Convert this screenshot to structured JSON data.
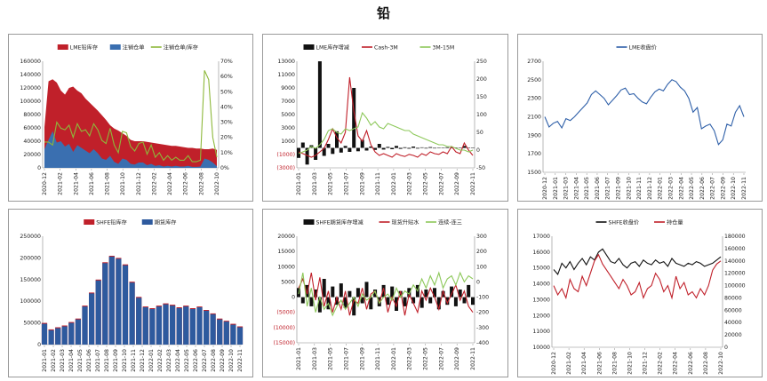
{
  "page": {
    "title": "铅"
  },
  "chart_data": [
    {
      "id": "lme-stock",
      "type": "bar",
      "legend": [
        "LME铅库存",
        "注销仓单",
        "注销仓单/库存"
      ],
      "ylim_left": [
        0,
        160000
      ],
      "yticks_left": [
        "0",
        "20000",
        "40000",
        "60000",
        "80000",
        "100000",
        "120000",
        "140000",
        "160000"
      ],
      "ylim_right": [
        0,
        70
      ],
      "yticks_right": [
        "0%",
        "10%",
        "20%",
        "30%",
        "40%",
        "50%",
        "60%",
        "70%"
      ],
      "xticks": [
        "2020-12",
        "2021-02",
        "2021-04",
        "2021-06",
        "2021-08",
        "2021-10",
        "2021-12",
        "2022-02",
        "2022-04",
        "2022-06",
        "2022-08",
        "2022-10"
      ],
      "series": [
        {
          "name": "LME铅库存",
          "kind": "area",
          "color": "#c0202a",
          "values": [
            61000,
            130000,
            133000,
            128000,
            116000,
            110000,
            120000,
            122000,
            116000,
            112000,
            104000,
            98000,
            92000,
            86000,
            79000,
            72000,
            64000,
            59000,
            56000,
            52000,
            48000,
            42000,
            40000,
            40000,
            40000,
            39000,
            38000,
            37000,
            36000,
            35000,
            34000,
            33000,
            33000,
            32000,
            31000,
            30000,
            30000,
            29000,
            29000,
            28000,
            28000,
            29000,
            27000
          ]
        },
        {
          "name": "注销仓单",
          "kind": "area",
          "color": "#3a6fb0",
          "values": [
            28000,
            42000,
            55000,
            38000,
            40000,
            32000,
            36000,
            24000,
            34000,
            30000,
            26000,
            22000,
            28000,
            22000,
            14000,
            12000,
            18000,
            9000,
            6000,
            14000,
            12000,
            6000,
            5000,
            8000,
            8000,
            4000,
            6000,
            3000,
            4000,
            2000,
            3000,
            2000,
            3000,
            2000,
            2000,
            3000,
            1500,
            1500,
            2000,
            14000,
            12000,
            8000,
            2500
          ]
        },
        {
          "name": "注销仓单/库存",
          "kind": "line",
          "color": "#8db83a",
          "values": [
            17,
            17,
            15,
            30,
            26,
            25,
            28,
            20,
            29,
            24,
            25,
            21,
            29,
            25,
            18,
            16,
            26,
            15,
            10,
            24,
            23,
            14,
            11,
            16,
            17,
            9,
            15,
            7,
            10,
            5,
            8,
            5,
            7,
            5,
            5,
            8,
            4,
            4,
            5,
            64,
            58,
            20,
            7
          ]
        }
      ]
    },
    {
      "id": "lme-stock-change",
      "type": "bar",
      "legend": [
        "LME库存增减",
        "Cash-3M",
        "3M-15M"
      ],
      "ylim_left": [
        -3000,
        13000
      ],
      "yticks_left": [
        "(3000)",
        "(1000)",
        "1000",
        "3000",
        "5000",
        "7000",
        "9000",
        "11000",
        "13000"
      ],
      "ylim_right": [
        -50,
        250
      ],
      "yticks_right": [
        "-50",
        "0",
        "50",
        "100",
        "150",
        "200",
        "250"
      ],
      "xticks": [
        "2021-01",
        "2021-03",
        "2021-05",
        "2021-07",
        "2021-09",
        "2021-11",
        "2022-01",
        "2022-03",
        "2022-05",
        "2022-07",
        "2022-09",
        "2022-11"
      ],
      "series": [
        {
          "name": "LME库存增减",
          "kind": "bar",
          "color": "#111111",
          "values": [
            -1500,
            800,
            -2500,
            400,
            -1800,
            13000,
            -1200,
            600,
            -900,
            2500,
            -700,
            300,
            -600,
            9000,
            -500,
            1200,
            -400,
            200,
            -300,
            600,
            -250,
            150,
            -200,
            300,
            -150,
            100,
            -120,
            200,
            -100,
            80,
            -90,
            120,
            -80,
            60,
            -70,
            100,
            -60,
            50,
            -50,
            300,
            -40,
            30
          ]
        },
        {
          "name": "Cash-3M",
          "kind": "line",
          "color": "#c0202a",
          "values": [
            -5,
            -10,
            -15,
            -20,
            -15,
            -5,
            5,
            30,
            60,
            35,
            20,
            50,
            205,
            110,
            40,
            25,
            55,
            15,
            -5,
            -15,
            -10,
            -15,
            -20,
            -10,
            -15,
            -18,
            -12,
            -15,
            -20,
            -10,
            -15,
            -5,
            -10,
            -12,
            -5,
            -10,
            10,
            -5,
            -10,
            20,
            0,
            -15
          ]
        },
        {
          "name": "3M-15M",
          "kind": "line",
          "color": "#8dc85a",
          "values": [
            -10,
            -5,
            0,
            10,
            5,
            15,
            30,
            55,
            60,
            50,
            45,
            60,
            55,
            60,
            65,
            105,
            90,
            70,
            80,
            65,
            60,
            75,
            70,
            65,
            60,
            55,
            55,
            45,
            40,
            35,
            30,
            25,
            20,
            15,
            15,
            10,
            10,
            5,
            0,
            0,
            -5,
            0
          ]
        }
      ]
    },
    {
      "id": "lme-price",
      "type": "line",
      "legend": [
        "LME收盘价"
      ],
      "ylim": [
        1500,
        2700
      ],
      "yticks": [
        "1500",
        "1700",
        "1900",
        "2100",
        "2300",
        "2500",
        "2700"
      ],
      "xticks": [
        "2020-12",
        "2021-01",
        "2021-03",
        "2021-04",
        "2021-05",
        "2021-06",
        "2021-07",
        "2021-09",
        "2021-10",
        "2021-11",
        "2021-12",
        "2022-01",
        "2022-03",
        "2022-04",
        "2022-05",
        "2022-06",
        "2022-07",
        "2022-09",
        "2022-10",
        "2022-11"
      ],
      "series": [
        {
          "name": "LME收盘价",
          "kind": "line",
          "color": "#2e5fa8",
          "values": [
            2100,
            1990,
            2030,
            2050,
            1980,
            2080,
            2060,
            2100,
            2150,
            2200,
            2250,
            2340,
            2380,
            2340,
            2300,
            2230,
            2280,
            2330,
            2390,
            2410,
            2340,
            2350,
            2300,
            2260,
            2240,
            2310,
            2370,
            2400,
            2380,
            2450,
            2500,
            2480,
            2420,
            2380,
            2300,
            2150,
            2200,
            1970,
            2000,
            2020,
            1950,
            1800,
            1850,
            2020,
            2000,
            2150,
            2220,
            2100
          ]
        }
      ]
    },
    {
      "id": "shfe-stock",
      "type": "bar",
      "legend": [
        "SHFE铅库存",
        "期货库存"
      ],
      "ylim": [
        0,
        250000
      ],
      "yticks": [
        "0",
        "50000",
        "100000",
        "150000",
        "200000",
        "250000"
      ],
      "xticks": [
        "2021-01",
        "2021-02",
        "2021-03",
        "2021-04",
        "2021-05",
        "2021-06",
        "2021-07",
        "2021-08",
        "2021-09",
        "2021-10",
        "2021-11",
        "2021-12",
        "2022-01",
        "2022-02",
        "2022-03",
        "2022-04",
        "2022-05",
        "2022-06",
        "2022-07",
        "2022-08",
        "2022-09",
        "2022-10",
        "2022-11"
      ],
      "series": [
        {
          "name": "SHFE铅库存",
          "kind": "bar",
          "color": "#c0202a",
          "values": [
            50000,
            35000,
            40000,
            44000,
            52000,
            60000,
            90000,
            120000,
            150000,
            190000,
            205000,
            200000,
            185000,
            145000,
            110000,
            88000,
            84000,
            90000,
            95000,
            92000,
            86000,
            90000,
            84000,
            88000,
            80000,
            72000,
            60000,
            55000,
            48000,
            42000
          ]
        },
        {
          "name": "期货库存",
          "kind": "bar",
          "color": "#2e5a9e",
          "values": [
            48000,
            33000,
            38000,
            42000,
            50000,
            58000,
            88000,
            118000,
            148000,
            188000,
            203000,
            198000,
            183000,
            143000,
            108000,
            86000,
            82000,
            88000,
            93000,
            90000,
            84000,
            88000,
            82000,
            86000,
            78000,
            70000,
            58000,
            53000,
            46000,
            40000
          ]
        }
      ]
    },
    {
      "id": "shfe-stock-change",
      "type": "bar",
      "legend": [
        "SHFE期货库存增减",
        "现货升贴水",
        "连续-连三"
      ],
      "ylim_left": [
        -15000,
        20000
      ],
      "yticks_left": [
        "(15000)",
        "(10000)",
        "(5000)",
        "0",
        "5000",
        "10000",
        "15000",
        "20000"
      ],
      "ylim_right": [
        -400,
        300
      ],
      "yticks_right": [
        "-400",
        "-300",
        "-200",
        "-100",
        "0",
        "100",
        "200",
        "300"
      ],
      "xticks": [
        "2021-01",
        "2021-03",
        "2021-05",
        "2021-07",
        "2021-09",
        "2021-11",
        "2022-01",
        "2022-03",
        "2022-05",
        "2022-07",
        "2022-09",
        "2022-11"
      ],
      "series": [
        {
          "name": "SHFE期货库存增减",
          "kind": "bar",
          "color": "#111111",
          "values": [
            3000,
            -2000,
            4000,
            -3000,
            2500,
            -5000,
            6000,
            -4000,
            3500,
            -2500,
            4500,
            -3500,
            2000,
            -6000,
            3000,
            -2000,
            5000,
            -4000,
            2500,
            -3000,
            4000,
            -2500,
            3500,
            -4500,
            2000,
            -3000,
            3000,
            -2000,
            4000,
            -3500,
            2500,
            -2000,
            3000,
            -4000,
            2000,
            -2500,
            3500,
            -3000,
            2500,
            -2000,
            4000,
            -2500
          ]
        },
        {
          "name": "现货升贴水",
          "kind": "line",
          "color": "#c0202a",
          "values": [
            -40,
            20,
            -80,
            60,
            -120,
            30,
            -160,
            -60,
            -200,
            -100,
            -180,
            -60,
            -220,
            -120,
            -140,
            -40,
            -180,
            -80,
            -60,
            -140,
            -40,
            -200,
            -100,
            -160,
            -60,
            -220,
            -80,
            -140,
            -200,
            -60,
            -120,
            -40,
            -100,
            -180,
            -60,
            -140,
            -80,
            -20,
            -120,
            -60,
            -160,
            -200
          ]
        },
        {
          "name": "连续-连三",
          "kind": "line",
          "color": "#8dc85a",
          "values": [
            -80,
            60,
            -160,
            -40,
            -200,
            -100,
            -180,
            -140,
            -220,
            -160,
            -120,
            -180,
            -140,
            -100,
            -160,
            -80,
            -120,
            -100,
            -60,
            -140,
            -100,
            -80,
            -120,
            -40,
            -100,
            -60,
            -80,
            -20,
            -60,
            20,
            -40,
            40,
            -20,
            60,
            -40,
            20,
            40,
            -20,
            60,
            0,
            40,
            20
          ]
        }
      ]
    },
    {
      "id": "shfe-price",
      "type": "line",
      "legend": [
        "SHFE收盘价",
        "持仓量"
      ],
      "ylim_left": [
        10000,
        17000
      ],
      "yticks_left": [
        "10000",
        "11000",
        "12000",
        "13000",
        "14000",
        "15000",
        "16000",
        "17000"
      ],
      "ylim_right": [
        0,
        180000
      ],
      "yticks_right": [
        "0",
        "20000",
        "40000",
        "60000",
        "80000",
        "100000",
        "120000",
        "140000",
        "160000",
        "180000"
      ],
      "xticks": [
        "2020-12",
        "2021-02",
        "2021-04",
        "2021-06",
        "2021-08",
        "2021-10",
        "2021-12",
        "2022-02",
        "2022-04",
        "2022-06",
        "2022-08",
        "2022-10"
      ],
      "series": [
        {
          "name": "SHFE收盘价",
          "kind": "line",
          "color": "#111111",
          "values": [
            14900,
            14600,
            15300,
            15000,
            15400,
            14900,
            15300,
            15600,
            15200,
            15700,
            15500,
            16000,
            16200,
            15800,
            15400,
            15300,
            15600,
            15200,
            15000,
            15300,
            15400,
            15100,
            15500,
            15300,
            15200,
            15500,
            15300,
            15400,
            15100,
            15600,
            15300,
            15200,
            15100,
            15300,
            15200,
            15400,
            15300,
            15100,
            15200,
            15300,
            15500,
            15700
          ]
        },
        {
          "name": "持仓量",
          "kind": "line",
          "color": "#c0202a",
          "values": [
            100000,
            85000,
            95000,
            80000,
            110000,
            95000,
            90000,
            115000,
            100000,
            120000,
            140000,
            150000,
            135000,
            125000,
            115000,
            105000,
            95000,
            110000,
            100000,
            85000,
            90000,
            105000,
            80000,
            95000,
            100000,
            120000,
            110000,
            90000,
            100000,
            80000,
            115000,
            95000,
            105000,
            85000,
            90000,
            80000,
            95000,
            85000,
            100000,
            125000,
            135000,
            140000
          ]
        }
      ]
    }
  ]
}
